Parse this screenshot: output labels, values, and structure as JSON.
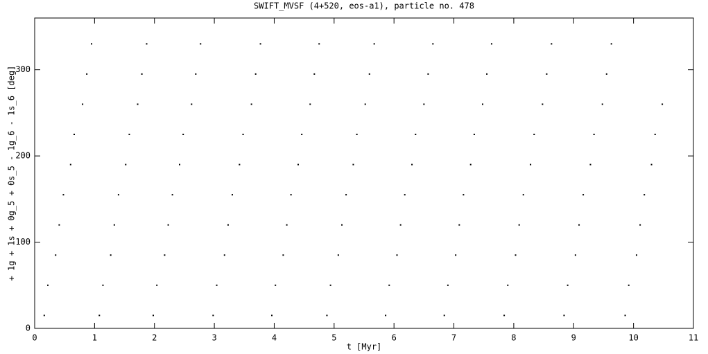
{
  "chart_data": {
    "type": "scatter",
    "title": "SWIFT_MVSF (4+520, eos-a1), particle no. 478",
    "x_label": "t [Myr]",
    "y_label": "+ 1g + 1s + 0g_5 + 0s_5 - 1g_6 - 1s_6 [deg]",
    "color": "#000000",
    "xlim": [
      0,
      11
    ],
    "ylim": [
      0,
      360
    ],
    "xticks": [
      0,
      1,
      2,
      3,
      4,
      5,
      6,
      7,
      8,
      9,
      10,
      11
    ],
    "yticks": [
      0,
      100,
      200,
      300
    ],
    "x": [
      0.16,
      0.22,
      0.35,
      0.41,
      0.48,
      0.6,
      0.66,
      0.8,
      0.87,
      0.95,
      1.08,
      1.14,
      1.27,
      1.33,
      1.4,
      1.52,
      1.58,
      1.72,
      1.79,
      1.87,
      1.98,
      2.04,
      2.17,
      2.23,
      2.3,
      2.42,
      2.48,
      2.62,
      2.69,
      2.77,
      2.98,
      3.04,
      3.17,
      3.23,
      3.3,
      3.42,
      3.48,
      3.62,
      3.69,
      3.77,
      3.96,
      4.02,
      4.15,
      4.21,
      4.28,
      4.4,
      4.46,
      4.6,
      4.67,
      4.75,
      4.88,
      4.94,
      5.07,
      5.13,
      5.2,
      5.32,
      5.38,
      5.52,
      5.59,
      5.67,
      5.86,
      5.92,
      6.05,
      6.11,
      6.18,
      6.3,
      6.36,
      6.5,
      6.57,
      6.65,
      6.84,
      6.9,
      7.03,
      7.09,
      7.16,
      7.28,
      7.34,
      7.48,
      7.55,
      7.63,
      7.84,
      7.9,
      8.03,
      8.09,
      8.16,
      8.28,
      8.34,
      8.48,
      8.55,
      8.63,
      8.84,
      8.9,
      9.03,
      9.09,
      9.16,
      9.28,
      9.34,
      9.48,
      9.55,
      9.63,
      9.86,
      9.92,
      10.05,
      10.11,
      10.18,
      10.3,
      10.36,
      10.48
    ],
    "values": [
      15,
      50,
      85,
      120,
      155,
      190,
      225,
      260,
      295,
      330,
      15,
      50,
      85,
      120,
      155,
      190,
      225,
      260,
      295,
      330,
      15,
      50,
      85,
      120,
      155,
      190,
      225,
      260,
      295,
      330,
      15,
      50,
      85,
      120,
      155,
      190,
      225,
      260,
      295,
      330,
      15,
      50,
      85,
      120,
      155,
      190,
      225,
      260,
      295,
      330,
      15,
      50,
      85,
      120,
      155,
      190,
      225,
      260,
      295,
      330,
      15,
      50,
      85,
      120,
      155,
      190,
      225,
      260,
      295,
      330,
      15,
      50,
      85,
      120,
      155,
      190,
      225,
      260,
      295,
      330,
      15,
      50,
      85,
      120,
      155,
      190,
      225,
      260,
      295,
      330,
      15,
      50,
      85,
      120,
      155,
      190,
      225,
      260,
      295,
      330,
      15,
      50,
      85,
      120,
      155,
      190,
      225,
      260
    ]
  }
}
